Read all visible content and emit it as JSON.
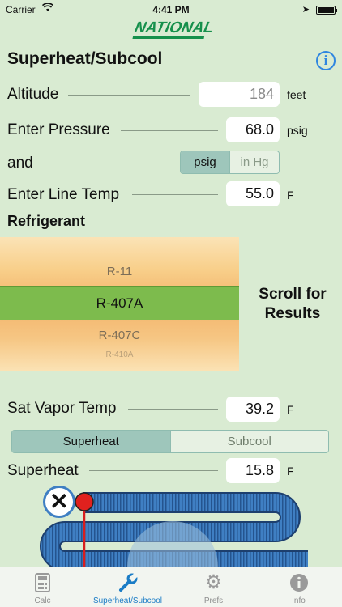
{
  "status": {
    "carrier": "Carrier",
    "time": "4:41 PM"
  },
  "logo": "NATIONAL",
  "title": "Superheat/Subcool",
  "altitude": {
    "label": "Altitude",
    "value": "184",
    "unit": "feet"
  },
  "pressure": {
    "label": "Enter Pressure",
    "value": "68.0",
    "unit": "psig"
  },
  "and_label": "and",
  "pressure_unit_toggle": {
    "options": [
      "psig",
      "in Hg"
    ],
    "selected": "psig"
  },
  "line_temp": {
    "label": "Enter Line Temp",
    "value": "55.0",
    "unit": "F"
  },
  "refrigerant": {
    "label": "Refrigerant",
    "items": [
      "R-11",
      "R-407A",
      "R-407C",
      "R-410A"
    ],
    "selected": "R-407A"
  },
  "scroll_hint": [
    "Scroll for",
    "Results"
  ],
  "sat_vapor": {
    "label": "Sat Vapor Temp",
    "value": "39.2",
    "unit": "F"
  },
  "mode_toggle": {
    "options": [
      "Superheat",
      "Subcool"
    ],
    "selected": "Superheat"
  },
  "superheat": {
    "label": "Superheat",
    "value": "15.8",
    "unit": "F"
  },
  "tabs": [
    {
      "label": "Calc",
      "icon": "calculator-icon"
    },
    {
      "label": "Superheat/Subcool",
      "icon": "wrench-icon"
    },
    {
      "label": "Prefs",
      "icon": "gear-icon"
    },
    {
      "label": "Info",
      "icon": "info-icon"
    }
  ],
  "colors": {
    "background": "#d9ebd2",
    "accent": "#1a7cc6",
    "picker_selected": "#7dbb4d",
    "logo": "#16904c"
  }
}
